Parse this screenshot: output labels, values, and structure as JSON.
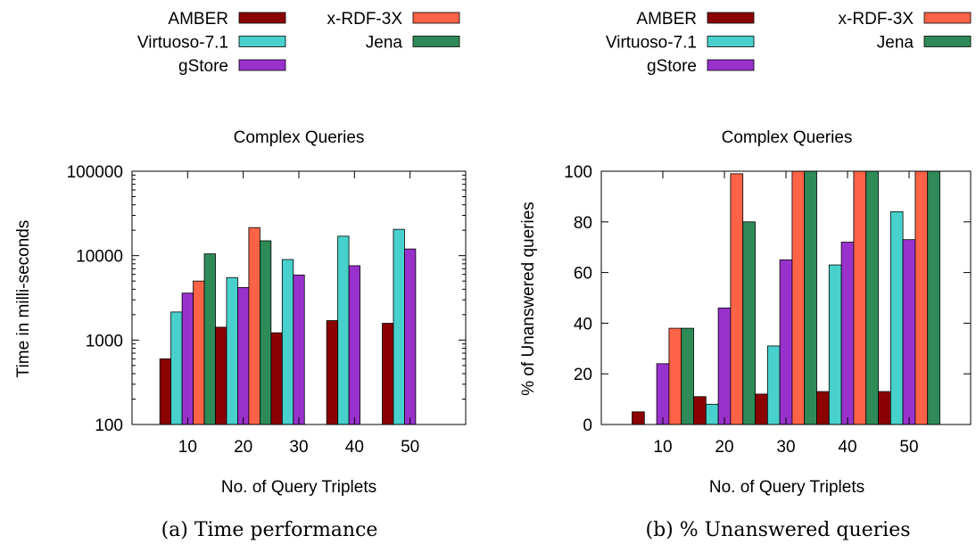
{
  "colors": {
    "AMBER": "#8b0000",
    "Virtuoso-7.1": "#48d1cc",
    "gStore": "#9932cc",
    "x-RDF-3X": "#ff6347",
    "Jena": "#2e8b57"
  },
  "chart_data": [
    {
      "type": "bar",
      "title": "Complex Queries",
      "caption": "(a) Time performance",
      "xlabel": "No. of Query Triplets",
      "ylabel": "Time in milli-seconds",
      "yscale": "log",
      "ylim": [
        100,
        100000
      ],
      "yticks": [
        "100",
        "1000",
        "10000",
        "100000"
      ],
      "legend_labels": [
        "AMBER",
        "Virtuoso-7.1",
        "gStore",
        "x-RDF-3X",
        "Jena"
      ],
      "categories": [
        "10",
        "20",
        "30",
        "40",
        "50"
      ],
      "series": [
        {
          "name": "AMBER",
          "values": [
            600,
            1420,
            1220,
            1700,
            1580
          ]
        },
        {
          "name": "Virtuoso-7.1",
          "values": [
            2150,
            5500,
            9000,
            17000,
            20500
          ]
        },
        {
          "name": "gStore",
          "values": [
            3600,
            4200,
            5900,
            7600,
            12000
          ]
        },
        {
          "name": "x-RDF-3X",
          "values": [
            5000,
            21500,
            null,
            null,
            null
          ]
        },
        {
          "name": "Jena",
          "values": [
            10500,
            15000,
            null,
            null,
            null
          ]
        }
      ]
    },
    {
      "type": "bar",
      "title": "Complex Queries",
      "caption": "(b) % Unanswered queries",
      "xlabel": "No. of Query Triplets",
      "ylabel": "% of Unanswered queries",
      "yscale": "linear",
      "ylim": [
        0,
        100
      ],
      "yticks": [
        "0",
        "20",
        "40",
        "60",
        "80",
        "100"
      ],
      "legend_labels": [
        "AMBER",
        "Virtuoso-7.1",
        "gStore",
        "x-RDF-3X",
        "Jena"
      ],
      "categories": [
        "10",
        "20",
        "30",
        "40",
        "50"
      ],
      "series": [
        {
          "name": "AMBER",
          "values": [
            5,
            11,
            12,
            13,
            13
          ]
        },
        {
          "name": "Virtuoso-7.1",
          "values": [
            0,
            8,
            31,
            63,
            84
          ]
        },
        {
          "name": "gStore",
          "values": [
            24,
            46,
            65,
            72,
            73
          ]
        },
        {
          "name": "x-RDF-3X",
          "values": [
            38,
            99,
            100,
            100,
            100
          ]
        },
        {
          "name": "Jena",
          "values": [
            38,
            80,
            100,
            100,
            100
          ]
        }
      ]
    }
  ]
}
